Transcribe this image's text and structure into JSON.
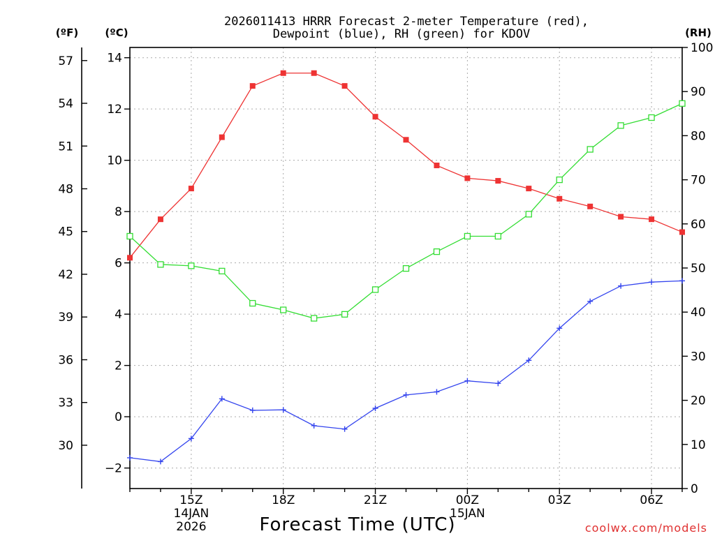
{
  "chart_data": {
    "type": "line",
    "title_line1": "2026011413 HRRR Forecast 2-meter Temperature (red),",
    "title_line2": "Dewpoint (blue), RH (green) for KDOV",
    "xlabel": "Forecast Time (UTC)",
    "unit_left_f": "(ºF)",
    "unit_left_c": "(ºC)",
    "unit_right": "(RH)",
    "watermark": "coolwx.com/models",
    "x_hours": [
      13,
      14,
      15,
      16,
      17,
      18,
      19,
      20,
      21,
      22,
      23,
      24,
      25,
      26,
      27,
      28,
      29,
      30,
      31
    ],
    "xlim": [
      13,
      31
    ],
    "x_ticks": [
      {
        "hour": 15,
        "label": "15Z",
        "sub1": "14JAN",
        "sub2": "2026"
      },
      {
        "hour": 18,
        "label": "18Z",
        "sub1": "",
        "sub2": ""
      },
      {
        "hour": 21,
        "label": "21Z",
        "sub1": "",
        "sub2": ""
      },
      {
        "hour": 24,
        "label": "00Z",
        "sub1": "15JAN",
        "sub2": ""
      },
      {
        "hour": 27,
        "label": "03Z",
        "sub1": "",
        "sub2": ""
      },
      {
        "hour": 30,
        "label": "06Z",
        "sub1": "",
        "sub2": ""
      }
    ],
    "ylim_c": [
      -2.8,
      14.4
    ],
    "yticks_c": [
      -2,
      0,
      2,
      4,
      6,
      8,
      10,
      12,
      14
    ],
    "ytick_labels_c": [
      "−2",
      "0",
      "2",
      "4",
      "6",
      "8",
      "10",
      "12",
      "14"
    ],
    "yticks_f": [
      30,
      33,
      36,
      39,
      42,
      45,
      48,
      51,
      54,
      57
    ],
    "ylim_rh": [
      0,
      100
    ],
    "yticks_rh": [
      0,
      10,
      20,
      30,
      40,
      50,
      60,
      70,
      80,
      90,
      100
    ],
    "series": [
      {
        "name": "Temperature",
        "units": "C",
        "axis": "c",
        "color": "#ee3333",
        "marker": "filled-square",
        "values": [
          6.2,
          7.7,
          8.9,
          10.9,
          12.9,
          13.4,
          13.4,
          12.9,
          11.7,
          10.8,
          9.8,
          9.3,
          9.2,
          8.9,
          8.5,
          8.2,
          7.8,
          7.7,
          7.2
        ]
      },
      {
        "name": "Dewpoint",
        "units": "C",
        "axis": "c",
        "color": "#3344ee",
        "marker": "plus",
        "values": [
          -1.6,
          -1.75,
          -0.85,
          0.7,
          0.25,
          0.27,
          -0.35,
          -0.48,
          0.33,
          0.85,
          0.97,
          1.4,
          1.3,
          2.2,
          3.45,
          4.5,
          5.1,
          5.25,
          5.3
        ]
      },
      {
        "name": "RH",
        "units": "%",
        "axis": "rh",
        "color": "#33dd33",
        "marker": "open-square",
        "values": [
          57.2,
          50.8,
          50.5,
          49.3,
          42.0,
          40.5,
          38.6,
          39.5,
          45.1,
          49.9,
          53.7,
          57.2,
          57.2,
          62.2,
          70.0,
          76.9,
          82.3,
          84.1,
          87.3
        ]
      }
    ]
  }
}
